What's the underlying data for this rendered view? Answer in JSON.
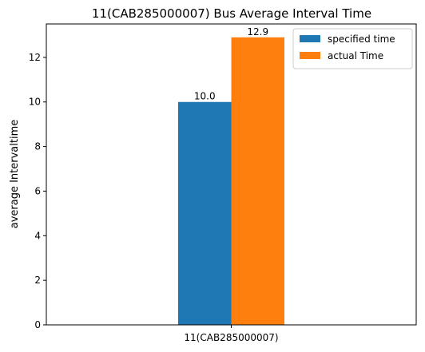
{
  "chart_data": {
    "type": "bar",
    "title": "11(CAB285000007) Bus Average Interval Time",
    "xlabel": "",
    "ylabel": "average Intervaltime",
    "categories": [
      "11(CAB285000007)"
    ],
    "series": [
      {
        "name": "specified time",
        "values": [
          10.0
        ],
        "color": "#1f77b4",
        "label": "10.0"
      },
      {
        "name": "actual Time",
        "values": [
          12.9
        ],
        "color": "#ff7f0e",
        "label": "12.9"
      }
    ],
    "ylim": [
      0,
      13.5
    ],
    "yticks": [
      0,
      2,
      4,
      6,
      8,
      10,
      12
    ],
    "ytick_labels": [
      "0",
      "2",
      "4",
      "6",
      "8",
      "10",
      "12"
    ],
    "grid": false,
    "legend_position": "top-right"
  }
}
